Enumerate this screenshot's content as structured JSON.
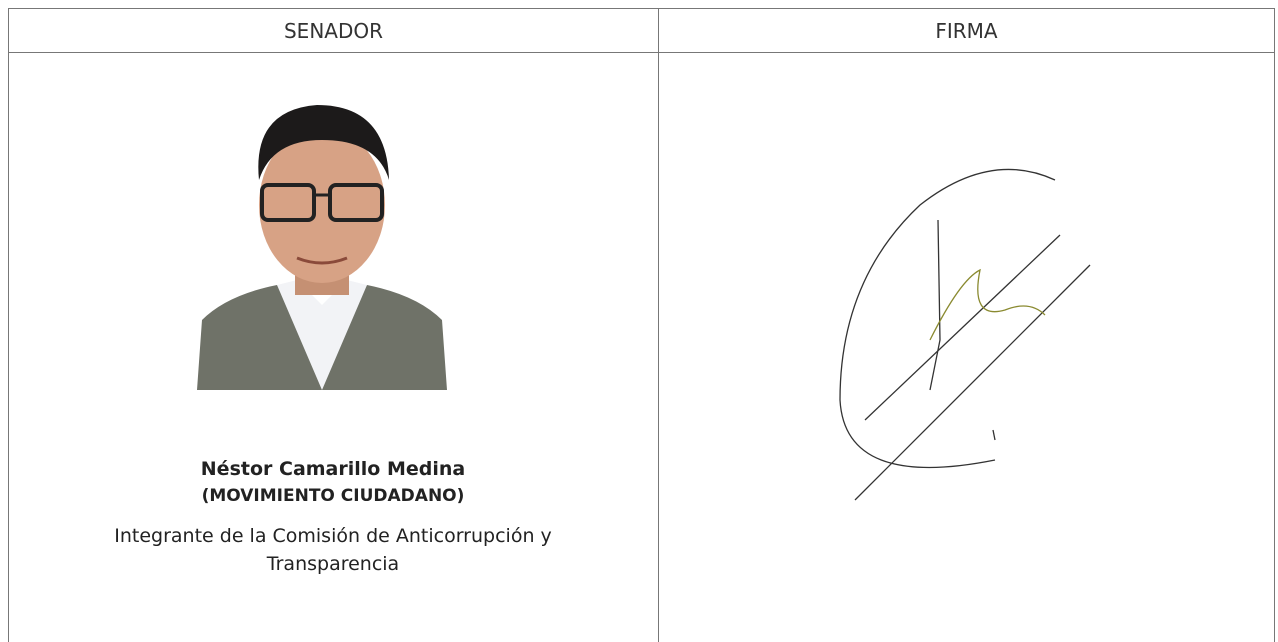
{
  "table": {
    "header": [
      "SENADOR",
      "FIRMA"
    ]
  },
  "senator": {
    "name": "Néstor Camarillo Medina",
    "party": "(MOVIMIENTO CIUDADANO)",
    "role": "Integrante de la Comisión de Anticorrupción y Transparencia"
  }
}
